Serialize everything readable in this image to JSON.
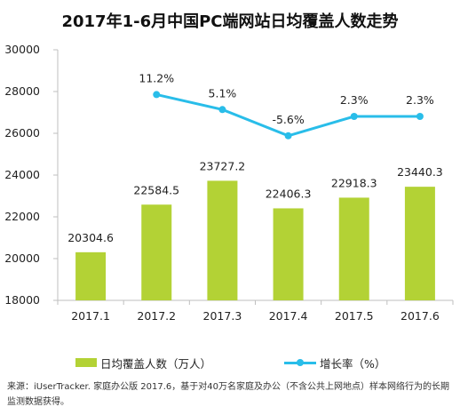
{
  "title": "2017年1-6月中国PC端网站日均覆盖人数走势",
  "colors": {
    "bar": "#b3d235",
    "line": "#29bde9",
    "axis": "#bfbfbf",
    "text": "#222222"
  },
  "legend": {
    "bar_label": "日均覆盖人数（万人）",
    "line_label": "增长率（%）"
  },
  "source_text": "来源：iUserTracker. 家庭办公版 2017.6，基于对40万名家庭及办公（不含公共上网地点）样本网络行为的长期监测数据获得。",
  "chart_data": {
    "type": "bar",
    "title": "2017年1-6月中国PC端网站日均覆盖人数走势",
    "categories": [
      "2017.1",
      "2017.2",
      "2017.3",
      "2017.4",
      "2017.5",
      "2017.6"
    ],
    "ylim": [
      18000,
      30000
    ],
    "yticks": [
      18000,
      20000,
      22000,
      24000,
      26000,
      28000,
      30000
    ],
    "legend_position": "bottom",
    "grid": false,
    "series": [
      {
        "name": "日均覆盖人数（万人）",
        "type": "bar",
        "values": [
          20304.6,
          22584.5,
          23727.2,
          22406.3,
          22918.3,
          23440.3
        ],
        "labels": [
          "20304.6",
          "22584.5",
          "23727.2",
          "22406.3",
          "22918.3",
          "23440.3"
        ]
      },
      {
        "name": "增长率（%）",
        "type": "line",
        "values": [
          null,
          11.2,
          5.1,
          -5.6,
          2.3,
          2.3
        ],
        "labels": [
          "",
          "11.2%",
          "5.1%",
          "-5.6%",
          "2.3%",
          "2.3%"
        ]
      }
    ]
  }
}
